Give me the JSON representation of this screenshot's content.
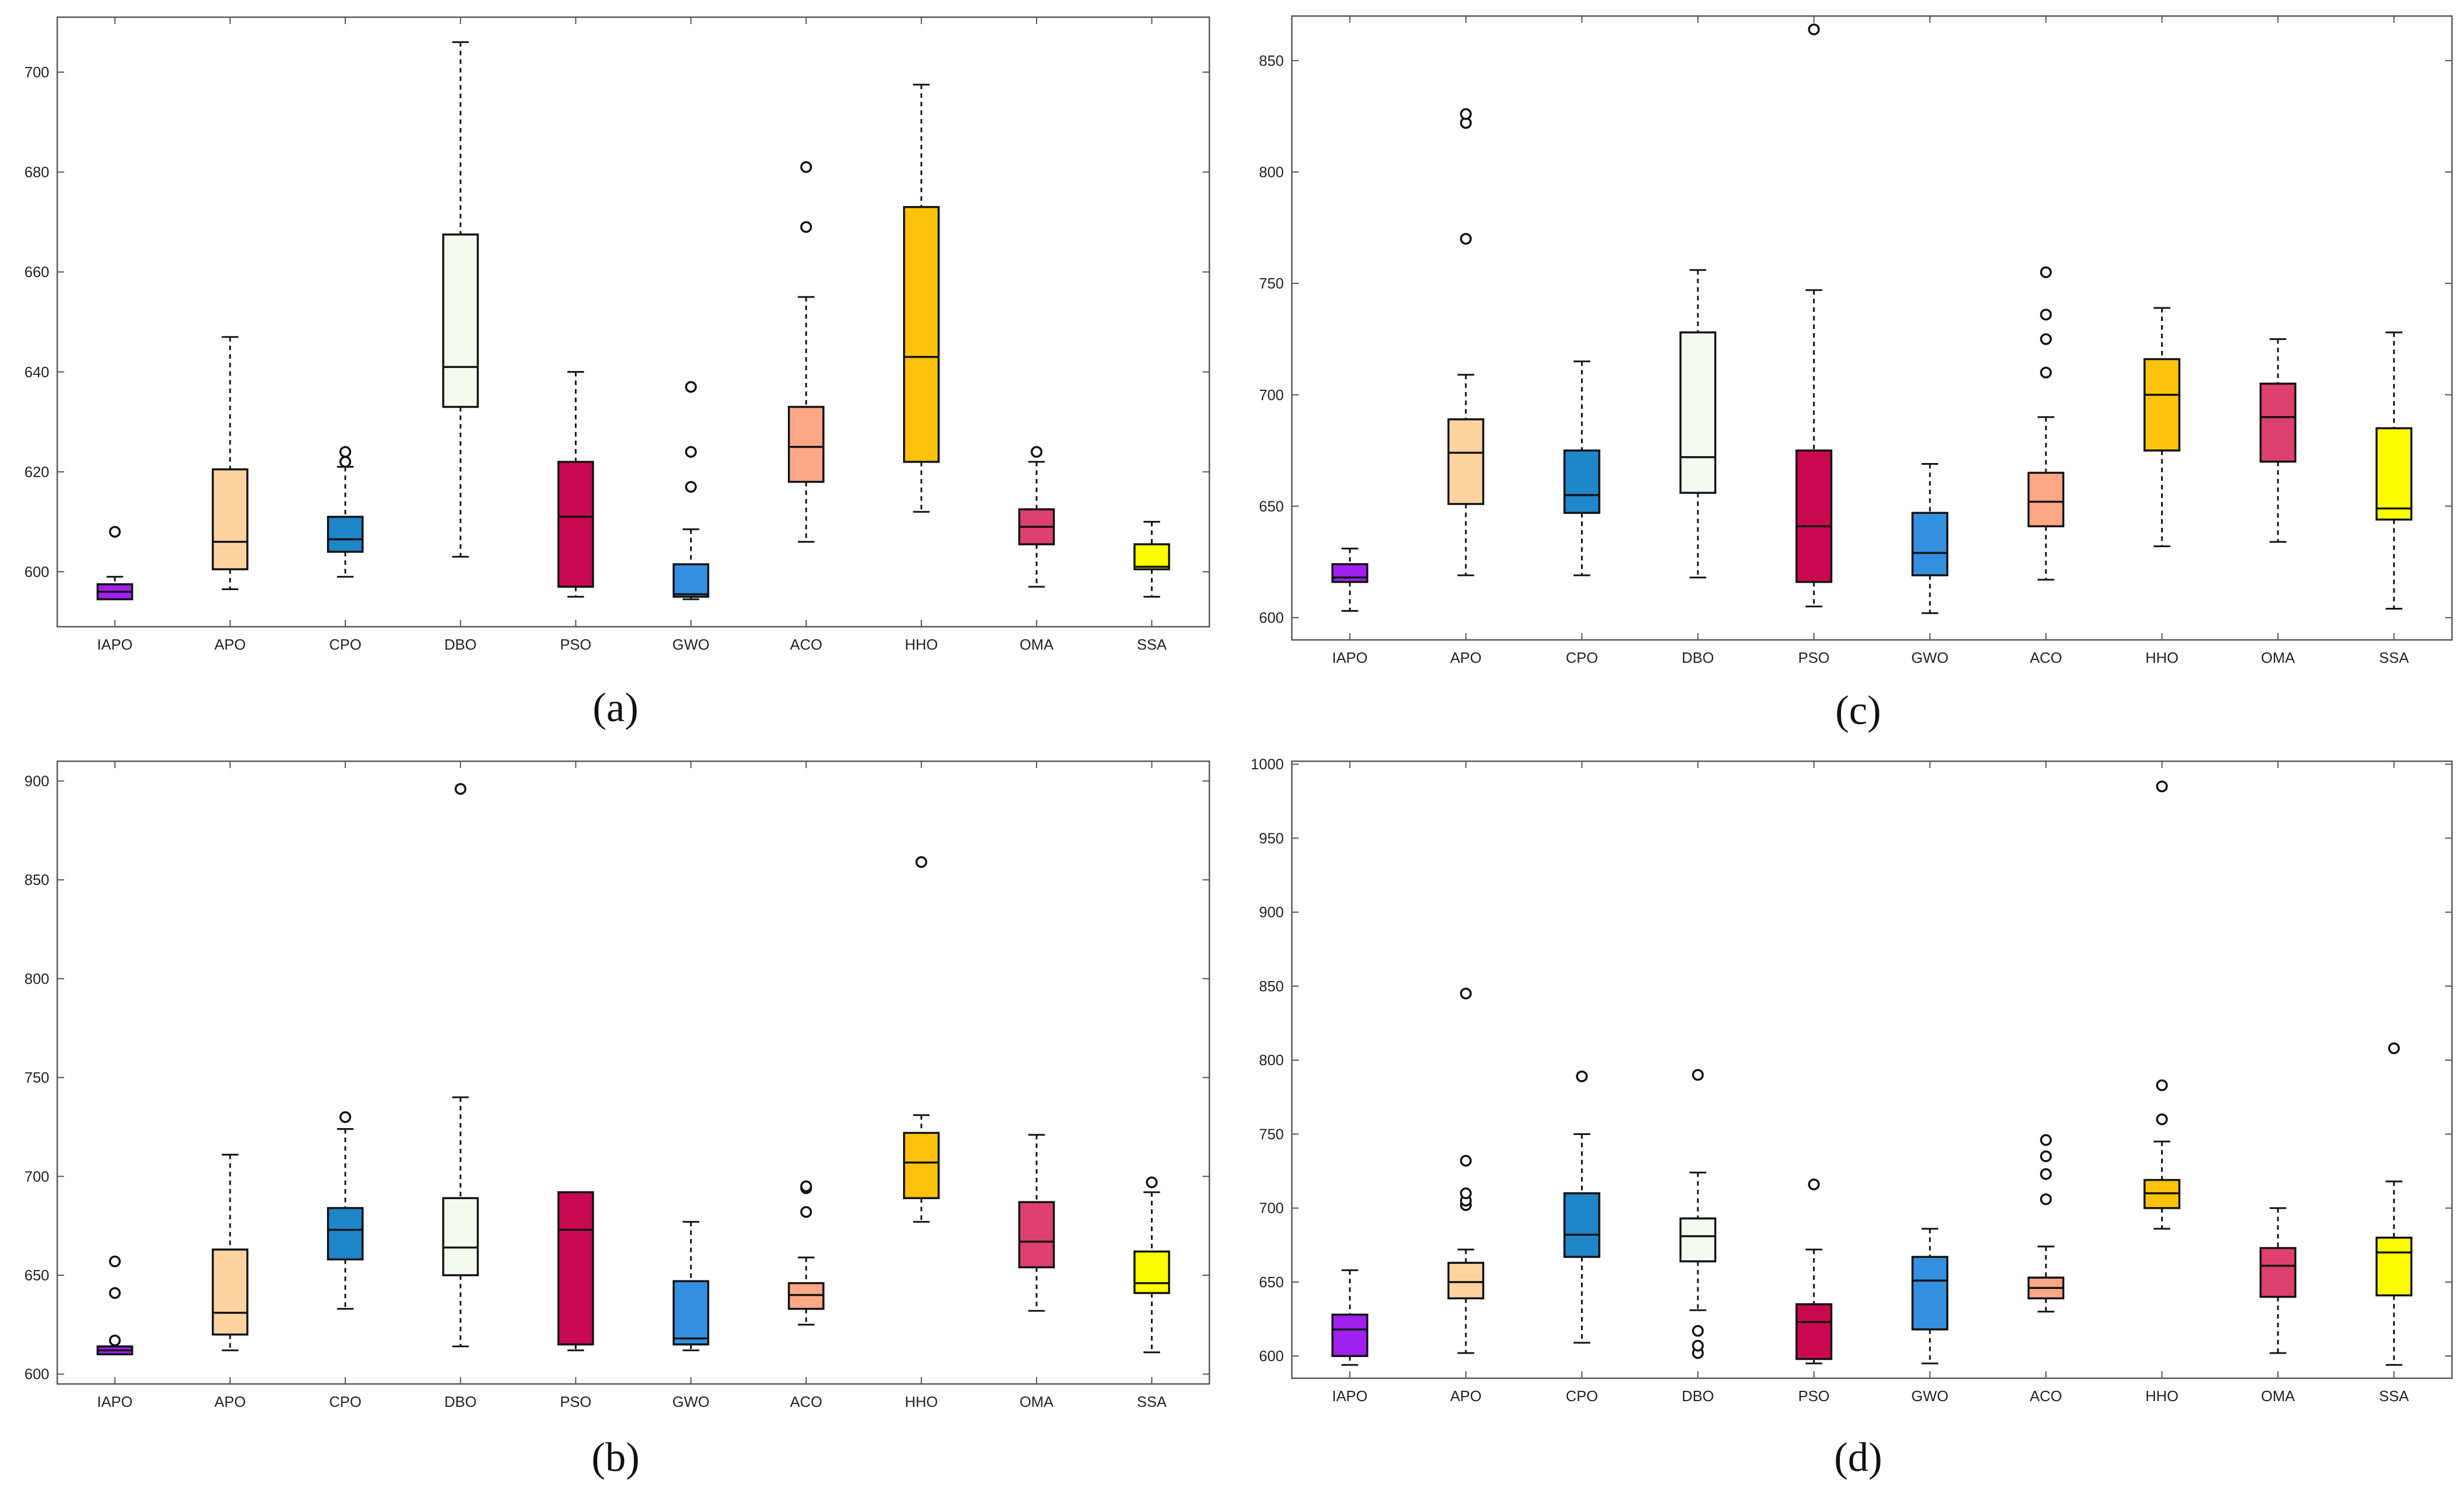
{
  "colors": {
    "IAPO": "#a020f0",
    "APO": "#fdd3a0",
    "CPO": "#1f86c8",
    "DBO": "#f3fbef",
    "PSO": "#c8084f",
    "GWO": "#3390e0",
    "ACO": "#fca785",
    "HHO": "#fcc30c",
    "OMA": "#dd3f6e",
    "SSA": "#fdfd00"
  },
  "chart_data": [
    {
      "type": "box",
      "panel_label": "(a)",
      "categories": [
        "IAPO",
        "APO",
        "CPO",
        "DBO",
        "PSO",
        "GWO",
        "ACO",
        "HHO",
        "OMA",
        "SSA"
      ],
      "ylim": [
        589,
        711
      ],
      "yticks": [
        600,
        620,
        640,
        660,
        680,
        700
      ],
      "boxes": [
        {
          "min": 594.5,
          "q1": 594.5,
          "median": 596,
          "q3": 597.5,
          "max": 599,
          "outliers": [
            608
          ]
        },
        {
          "min": 596.5,
          "q1": 600.5,
          "median": 606,
          "q3": 620.5,
          "max": 647,
          "outliers": []
        },
        {
          "min": 599,
          "q1": 604,
          "median": 606.5,
          "q3": 611,
          "max": 621,
          "outliers": [
            622,
            624
          ]
        },
        {
          "min": 603,
          "q1": 633,
          "median": 641,
          "q3": 667.5,
          "max": 706,
          "outliers": []
        },
        {
          "min": 595,
          "q1": 597,
          "median": 611,
          "q3": 622,
          "max": 640,
          "outliers": []
        },
        {
          "min": 594.5,
          "q1": 595,
          "median": 595.5,
          "q3": 601.5,
          "max": 608.5,
          "outliers": [
            617,
            624,
            637
          ]
        },
        {
          "min": 606,
          "q1": 618,
          "median": 625,
          "q3": 633,
          "max": 655,
          "outliers": [
            669,
            681
          ]
        },
        {
          "min": 612,
          "q1": 622,
          "median": 643,
          "q3": 673,
          "max": 697.5,
          "outliers": []
        },
        {
          "min": 597,
          "q1": 605.5,
          "median": 609,
          "q3": 612.5,
          "max": 622,
          "outliers": [
            624
          ]
        },
        {
          "min": 595,
          "q1": 600.5,
          "median": 601,
          "q3": 605.5,
          "max": 610,
          "outliers": []
        }
      ]
    },
    {
      "type": "box",
      "panel_label": "(b)",
      "categories": [
        "IAPO",
        "APO",
        "CPO",
        "DBO",
        "PSO",
        "GWO",
        "ACO",
        "HHO",
        "OMA",
        "SSA"
      ],
      "ylim": [
        595,
        910
      ],
      "yticks": [
        600,
        650,
        700,
        750,
        800,
        850,
        900
      ],
      "boxes": [
        {
          "min": 610,
          "q1": 610,
          "median": 612,
          "q3": 614,
          "max": 614,
          "outliers": [
            617,
            641,
            657
          ]
        },
        {
          "min": 612,
          "q1": 620,
          "median": 631,
          "q3": 663,
          "max": 711,
          "outliers": []
        },
        {
          "min": 633,
          "q1": 658,
          "median": 673,
          "q3": 684,
          "max": 724,
          "outliers": [
            730
          ]
        },
        {
          "min": 614,
          "q1": 650,
          "median": 664,
          "q3": 689,
          "max": 740,
          "outliers": [
            896
          ]
        },
        {
          "min": 612,
          "q1": 615,
          "median": 673,
          "q3": 692,
          "max": 692,
          "outliers": []
        },
        {
          "min": 612,
          "q1": 615,
          "median": 618,
          "q3": 647,
          "max": 677,
          "outliers": []
        },
        {
          "min": 625,
          "q1": 633,
          "median": 640,
          "q3": 646,
          "max": 659,
          "outliers": [
            682,
            694,
            695
          ]
        },
        {
          "min": 677,
          "q1": 689,
          "median": 707,
          "q3": 722,
          "max": 731,
          "outliers": [
            859
          ]
        },
        {
          "min": 632,
          "q1": 654,
          "median": 667,
          "q3": 687,
          "max": 721,
          "outliers": []
        },
        {
          "min": 611,
          "q1": 641,
          "median": 646,
          "q3": 662,
          "max": 692,
          "outliers": [
            697
          ]
        }
      ]
    },
    {
      "type": "box",
      "panel_label": "(c)",
      "categories": [
        "IAPO",
        "APO",
        "CPO",
        "DBO",
        "PSO",
        "GWO",
        "ACO",
        "HHO",
        "OMA",
        "SSA"
      ],
      "ylim": [
        590,
        870
      ],
      "yticks": [
        600,
        650,
        700,
        750,
        800,
        850
      ],
      "boxes": [
        {
          "min": 603,
          "q1": 616,
          "median": 618,
          "q3": 624,
          "max": 631,
          "outliers": []
        },
        {
          "min": 619,
          "q1": 651,
          "median": 674,
          "q3": 689,
          "max": 709,
          "outliers": [
            770,
            822,
            826
          ]
        },
        {
          "min": 619,
          "q1": 647,
          "median": 655,
          "q3": 675,
          "max": 715,
          "outliers": []
        },
        {
          "min": 618,
          "q1": 656,
          "median": 672,
          "q3": 728,
          "max": 756,
          "outliers": []
        },
        {
          "min": 605,
          "q1": 616,
          "median": 641,
          "q3": 675,
          "max": 747,
          "outliers": [
            864
          ]
        },
        {
          "min": 602,
          "q1": 619,
          "median": 629,
          "q3": 647,
          "max": 669,
          "outliers": []
        },
        {
          "min": 617,
          "q1": 641,
          "median": 652,
          "q3": 665,
          "max": 690,
          "outliers": [
            710,
            725,
            736,
            755
          ]
        },
        {
          "min": 632,
          "q1": 675,
          "median": 700,
          "q3": 716,
          "max": 739,
          "outliers": []
        },
        {
          "min": 634,
          "q1": 670,
          "median": 690,
          "q3": 705,
          "max": 725,
          "outliers": []
        },
        {
          "min": 604,
          "q1": 644,
          "median": 649,
          "q3": 685,
          "max": 728,
          "outliers": []
        }
      ]
    },
    {
      "type": "box",
      "panel_label": "(d)",
      "categories": [
        "IAPO",
        "APO",
        "CPO",
        "DBO",
        "PSO",
        "GWO",
        "ACO",
        "HHO",
        "OMA",
        "SSA"
      ],
      "ylim": [
        585,
        1002
      ],
      "yticks": [
        600,
        650,
        700,
        750,
        800,
        850,
        900,
        950,
        1000
      ],
      "boxes": [
        {
          "min": 594,
          "q1": 600,
          "median": 618,
          "q3": 628,
          "max": 658,
          "outliers": []
        },
        {
          "min": 602,
          "q1": 639,
          "median": 650,
          "q3": 663,
          "max": 672,
          "outliers": [
            702,
            705,
            710,
            732,
            845
          ]
        },
        {
          "min": 609,
          "q1": 667,
          "median": 682,
          "q3": 710,
          "max": 750,
          "outliers": [
            789
          ]
        },
        {
          "min": 631,
          "q1": 664,
          "median": 681,
          "q3": 693,
          "max": 724,
          "outliers": [
            602,
            607,
            617,
            790
          ]
        },
        {
          "min": 595,
          "q1": 598,
          "median": 623,
          "q3": 635,
          "max": 672,
          "outliers": [
            716
          ]
        },
        {
          "min": 595,
          "q1": 618,
          "median": 651,
          "q3": 667,
          "max": 686,
          "outliers": []
        },
        {
          "min": 630,
          "q1": 639,
          "median": 646,
          "q3": 653,
          "max": 674,
          "outliers": [
            706,
            723,
            735,
            746
          ]
        },
        {
          "min": 686,
          "q1": 700,
          "median": 710,
          "q3": 719,
          "max": 745,
          "outliers": [
            760,
            783,
            985
          ]
        },
        {
          "min": 602,
          "q1": 640,
          "median": 661,
          "q3": 673,
          "max": 700,
          "outliers": []
        },
        {
          "min": 594,
          "q1": 641,
          "median": 670,
          "q3": 680,
          "max": 718,
          "outliers": [
            808
          ]
        }
      ]
    }
  ]
}
